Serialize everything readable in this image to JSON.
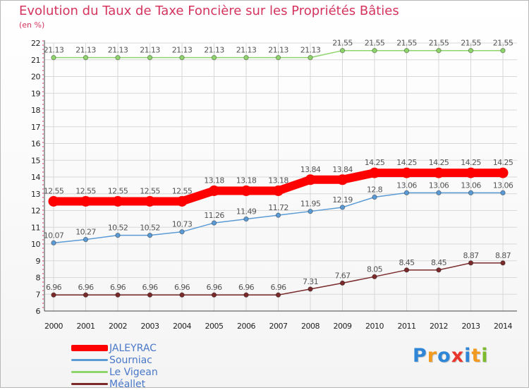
{
  "header": {
    "title": "Evolution du Taux de Taxe Foncière sur les Propriétés Bâties",
    "unit": "(en %)"
  },
  "logo": {
    "text": "Proxiti"
  },
  "colors": {
    "title": "#d4345e",
    "grid": "#d8d8d8",
    "axis_label": "#222222",
    "value_label": "#555555",
    "legend_label": "#4a78c8"
  },
  "chart_data": {
    "type": "line",
    "title": "Evolution du Taux de Taxe Foncière sur les Propriétés Bâties",
    "ylabel": "(en %)",
    "xlabel": "",
    "categories": [
      "2000",
      "2001",
      "2002",
      "2003",
      "2004",
      "2005",
      "2006",
      "2007",
      "2008",
      "2009",
      "2010",
      "2011",
      "2012",
      "2013",
      "2014"
    ],
    "ylim": [
      6,
      22
    ],
    "yticks": [
      6,
      7,
      8,
      9,
      10,
      11,
      12,
      13,
      14,
      15,
      16,
      17,
      18,
      19,
      20,
      21,
      22
    ],
    "grid": true,
    "legend_position": "bottom-left",
    "series": [
      {
        "name": "JALEYRAC",
        "color": "#ff0000",
        "width": 12,
        "labels": [
          "12.55",
          "12.55",
          "12.55",
          "12.55",
          "12.55",
          "13.18",
          "13.18",
          "13.18",
          "13.84",
          "13.84",
          "14.25",
          "14.25",
          "14.25",
          "14.25",
          "14.25"
        ],
        "values": [
          12.55,
          12.55,
          12.55,
          12.55,
          12.55,
          13.18,
          13.18,
          13.18,
          13.84,
          13.84,
          14.25,
          14.25,
          14.25,
          14.25,
          14.25
        ]
      },
      {
        "name": "Sourniac",
        "color": "#5b9bd5",
        "width": 1.5,
        "labels": [
          "10.07",
          "10.27",
          "10.52",
          "10.52",
          "10.73",
          "11.26",
          "11.49",
          "11.72",
          "11.95",
          "12.19",
          "12.8",
          "13.06",
          "13.06",
          "13.06",
          "13.06"
        ],
        "values": [
          10.07,
          10.27,
          10.52,
          10.52,
          10.73,
          11.26,
          11.49,
          11.72,
          11.95,
          12.19,
          12.8,
          13.06,
          13.06,
          13.06,
          13.06
        ]
      },
      {
        "name": "Le Vigean",
        "color": "#8fd46c",
        "width": 1.5,
        "labels": [
          "21.13",
          "21.13",
          "21.13",
          "21.13",
          "21.13",
          "21.13",
          "21.13",
          "21.13",
          "21.13",
          "21.55",
          "21.55",
          "21.55",
          "21.55",
          "21.55",
          "21.55"
        ],
        "values": [
          21.13,
          21.13,
          21.13,
          21.13,
          21.13,
          21.13,
          21.13,
          21.13,
          21.13,
          21.55,
          21.55,
          21.55,
          21.55,
          21.55,
          21.55
        ]
      },
      {
        "name": "Méallet",
        "color": "#7a2a2a",
        "width": 1.5,
        "labels": [
          "6.96",
          "6.96",
          "6.96",
          "6.96",
          "6.96",
          "6.96",
          "6.96",
          "6.96",
          "7.31",
          "7.67",
          "8.05",
          "8.45",
          "8.45",
          "8.87",
          "8.87"
        ],
        "values": [
          6.96,
          6.96,
          6.96,
          6.96,
          6.96,
          6.96,
          6.96,
          6.96,
          7.31,
          7.67,
          8.05,
          8.45,
          8.45,
          8.87,
          8.87
        ]
      }
    ]
  }
}
